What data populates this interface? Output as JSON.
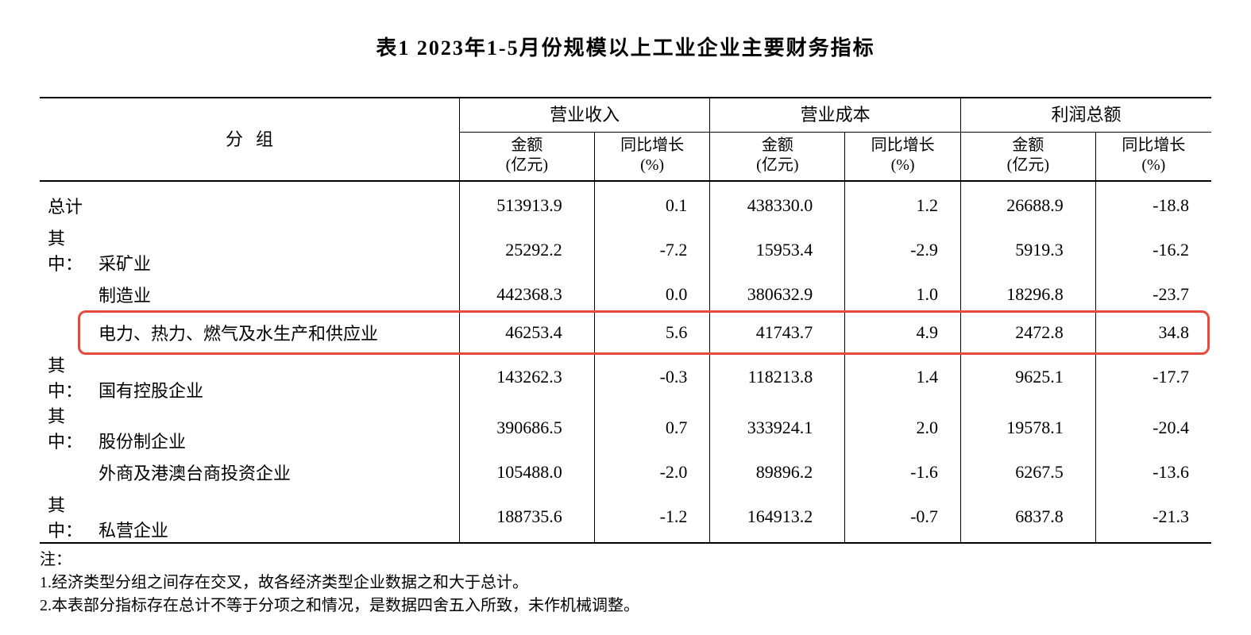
{
  "title": "表1    2023年1-5月份规模以上工业企业主要财务指标",
  "header": {
    "grouping": "分组",
    "sections": [
      {
        "label": "营业收入",
        "sub_amt": "金额",
        "sub_amt_unit": "(亿元)",
        "sub_pct": "同比增长",
        "sub_pct_unit": "(%)"
      },
      {
        "label": "营业成本",
        "sub_amt": "金额",
        "sub_amt_unit": "(亿元)",
        "sub_pct": "同比增长",
        "sub_pct_unit": "(%)"
      },
      {
        "label": "利润总额",
        "sub_amt": "金额",
        "sub_amt_unit": "(亿元)",
        "sub_pct": "同比增长",
        "sub_pct_unit": "(%)"
      }
    ]
  },
  "rows": [
    {
      "prefix": "",
      "indent": false,
      "name": "总计",
      "rev_amt": "513913.9",
      "rev_pct": "0.1",
      "cost_amt": "438330.0",
      "cost_pct": "1.2",
      "prof_amt": "26688.9",
      "prof_pct": "-18.8",
      "highlight": false
    },
    {
      "prefix": "其中：",
      "indent": false,
      "name": "采矿业",
      "rev_amt": "25292.2",
      "rev_pct": "-7.2",
      "cost_amt": "15953.4",
      "cost_pct": "-2.9",
      "prof_amt": "5919.3",
      "prof_pct": "-16.2",
      "highlight": false
    },
    {
      "prefix": "",
      "indent": true,
      "name": "制造业",
      "rev_amt": "442368.3",
      "rev_pct": "0.0",
      "cost_amt": "380632.9",
      "cost_pct": "1.0",
      "prof_amt": "18296.8",
      "prof_pct": "-23.7",
      "highlight": false
    },
    {
      "prefix": "",
      "indent": true,
      "name": "电力、热力、燃气及水生产和供应业",
      "rev_amt": "46253.4",
      "rev_pct": "5.6",
      "cost_amt": "41743.7",
      "cost_pct": "4.9",
      "prof_amt": "2472.8",
      "prof_pct": "34.8",
      "highlight": true
    },
    {
      "prefix": "其中：",
      "indent": false,
      "name": "国有控股企业",
      "rev_amt": "143262.3",
      "rev_pct": "-0.3",
      "cost_amt": "118213.8",
      "cost_pct": "1.4",
      "prof_amt": "9625.1",
      "prof_pct": "-17.7",
      "highlight": false
    },
    {
      "prefix": "其中：",
      "indent": false,
      "name": "股份制企业",
      "rev_amt": "390686.5",
      "rev_pct": "0.7",
      "cost_amt": "333924.1",
      "cost_pct": "2.0",
      "prof_amt": "19578.1",
      "prof_pct": "-20.4",
      "highlight": false
    },
    {
      "prefix": "",
      "indent": true,
      "name": "外商及港澳台商投资企业",
      "rev_amt": "105488.0",
      "rev_pct": "-2.0",
      "cost_amt": "89896.2",
      "cost_pct": "-1.6",
      "prof_amt": "6267.5",
      "prof_pct": "-13.6",
      "highlight": false
    },
    {
      "prefix": "其中：",
      "indent": false,
      "name": "私营企业",
      "rev_amt": "188735.6",
      "rev_pct": "-1.2",
      "cost_amt": "164913.2",
      "cost_pct": "-0.7",
      "prof_amt": "6837.8",
      "prof_pct": "-21.3",
      "highlight": false
    }
  ],
  "notes": {
    "heading": "注：",
    "lines": [
      "1.经济类型分组之间存在交叉，故各经济类型企业数据之和大于总计。",
      "2.本表部分指标存在总计不等于分项之和情况，是数据四舍五入所致，未作机械调整。"
    ]
  },
  "style": {
    "highlight_color": "#e74a3b",
    "highlight_border_radius": 10,
    "rule_color": "#000000",
    "background": "#ffffff",
    "font_family": "SimSun",
    "title_fontsize": 26,
    "body_fontsize": 22,
    "note_fontsize": 20
  }
}
